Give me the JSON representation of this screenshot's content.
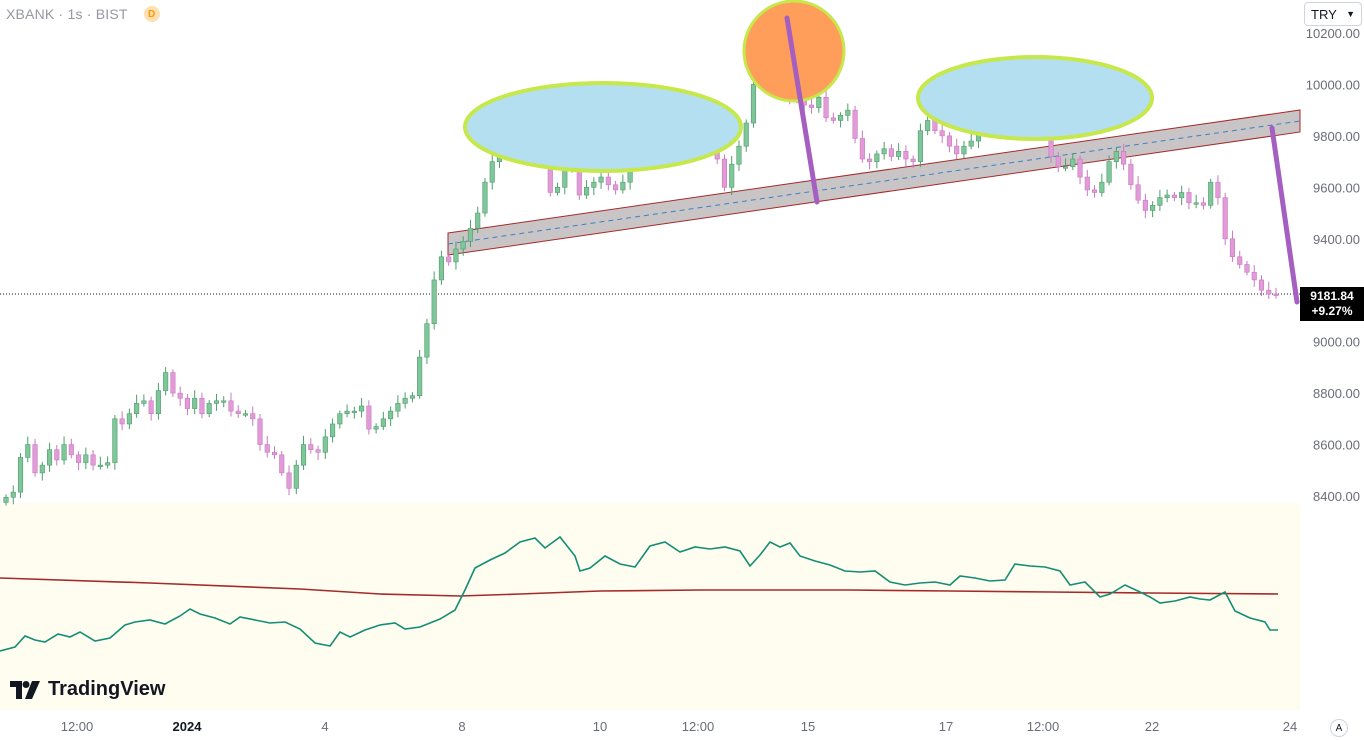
{
  "header": {
    "symbol": "XBANK · 1s · BIST",
    "badge": "D"
  },
  "currency": {
    "selected": "TRY"
  },
  "last_price": {
    "value": "9181.84",
    "change": "+9.27%"
  },
  "logo_text": "TradingView",
  "auto_button": "A",
  "colors": {
    "up": "#7fc79a",
    "down": "#e29ad8",
    "indicator": "#138d75",
    "signal": "#a52a2a",
    "panel_bg": "#fffdf0",
    "ellipse_fill": "#b3dff0",
    "ellipse_edge": "#c6e84a",
    "circle_fill": "#ff9e5a",
    "arrow": "#a45fc0"
  },
  "chart_data": {
    "type": "candlestick",
    "y_ticks": [
      "10200.00",
      "10000.00",
      "9800.00",
      "9600.00",
      "9400.00",
      "9000.00",
      "8800.00",
      "8600.00",
      "8400.00"
    ],
    "x_ticks": [
      "12:00",
      "2024",
      "4",
      "8",
      "10",
      "12:00",
      "15",
      "17",
      "12:00",
      "22",
      "24"
    ],
    "ylim": [
      8350,
      10240
    ],
    "close": [
      8395,
      8415,
      8550,
      8600,
      8490,
      8520,
      8580,
      8540,
      8600,
      8560,
      8530,
      8560,
      8520,
      8520,
      8530,
      8700,
      8680,
      8720,
      8760,
      8770,
      8720,
      8810,
      8880,
      8800,
      8780,
      8740,
      8780,
      8720,
      8760,
      8770,
      8770,
      8730,
      8720,
      8720,
      8700,
      8600,
      8570,
      8560,
      8490,
      8430,
      8520,
      8600,
      8580,
      8570,
      8630,
      8680,
      8720,
      8730,
      8730,
      8750,
      8660,
      8670,
      8700,
      8730,
      8760,
      8780,
      8790,
      8940,
      9070,
      9240,
      9330,
      9310,
      9360,
      9390,
      9440,
      9500,
      9620,
      9700,
      9780,
      9740,
      9780,
      9800,
      9850,
      9770,
      9700,
      9580,
      9600,
      9680,
      9690,
      9570,
      9600,
      9620,
      9640,
      9610,
      9590,
      9620,
      9740,
      9810,
      9870,
      9850,
      9890,
      9870,
      9880,
      9850,
      9880,
      9890,
      9870,
      9830,
      9710,
      9600,
      9690,
      9760,
      9850,
      10000,
      10060,
      10140,
      10080,
      10010,
      9940,
      9960,
      9920,
      9910,
      9950,
      9870,
      9860,
      9880,
      9900,
      9790,
      9710,
      9700,
      9730,
      9750,
      9720,
      9740,
      9710,
      9700,
      9820,
      9860,
      9820,
      9800,
      9760,
      9730,
      9760,
      9780,
      9840,
      9990,
      9990,
      9970,
      9960,
      9950,
      9970,
      9940,
      9930,
      9850,
      9720,
      9680,
      9680,
      9710,
      9640,
      9590,
      9580,
      9620,
      9700,
      9740,
      9690,
      9610,
      9550,
      9510,
      9530,
      9560,
      9570,
      9560,
      9580,
      9540,
      9540,
      9530,
      9620,
      9560,
      9400,
      9330,
      9300,
      9270,
      9240,
      9200,
      9185,
      9181.84
    ]
  }
}
